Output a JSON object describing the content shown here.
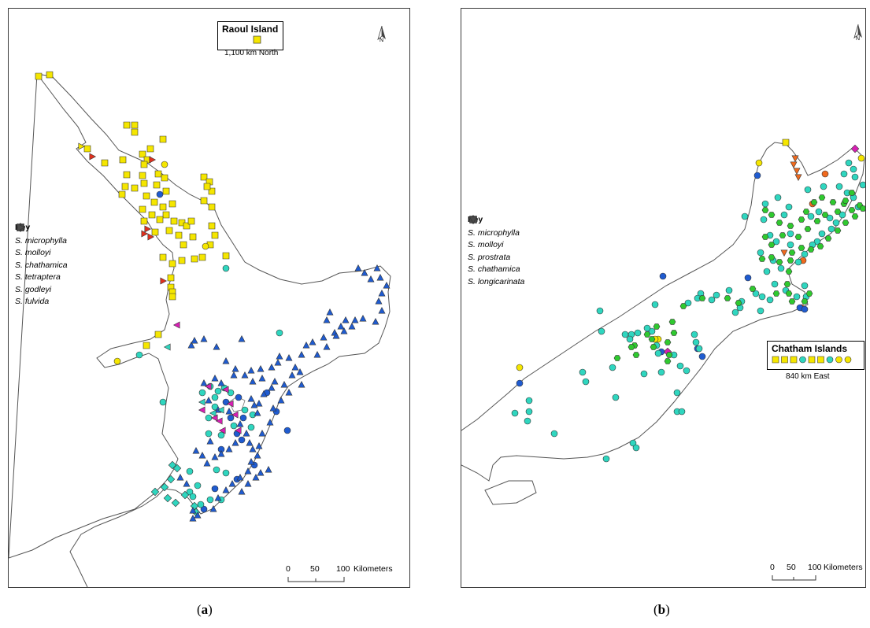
{
  "panel_a": {
    "caption_letter": "a",
    "inset_title": "Raoul Island",
    "inset_note": "1,100 km North",
    "north_label": "N",
    "key_title": "Key",
    "key_items": [
      {
        "label": "S. microphylla",
        "shape": "circle"
      },
      {
        "label": "S. molloyi",
        "shape": "diamond"
      },
      {
        "label": "S. chathamica",
        "shape": "square"
      },
      {
        "label": "S. tetraptera",
        "shape": "triangle-up"
      },
      {
        "label": "S. godleyi",
        "shape": "triangle-left"
      },
      {
        "label": "S. fulvida",
        "shape": "triangle-right"
      }
    ],
    "scale": {
      "ticks": [
        "0",
        "50",
        "100"
      ],
      "unit": "Kilometers"
    }
  },
  "panel_b": {
    "caption_letter": "b",
    "inset_title": "Chatham Islands",
    "inset_note": "840 km East",
    "north_label": "N",
    "key_title": "Key",
    "key_items": [
      {
        "label": "S. microphylla",
        "shape": "circle"
      },
      {
        "label": "S. molloyi",
        "shape": "diamond"
      },
      {
        "label": "S. prostrata",
        "shape": "hexagon"
      },
      {
        "label": "S. chathamica",
        "shape": "square"
      },
      {
        "label": "S. longicarinata",
        "shape": "triangle-down"
      }
    ],
    "scale": {
      "ticks": [
        "0",
        "50",
        "100"
      ],
      "unit": "Kilometers"
    }
  },
  "colors": {
    "yellow": "#f5e600",
    "cyan": "#2fd6bf",
    "blue": "#1f5bd0",
    "green": "#2fc92f",
    "magenta": "#d81fb4",
    "red": "#e0301e",
    "orange": "#f06a1e",
    "key_symbol": "#4a4a4a",
    "coast": "#555555"
  }
}
